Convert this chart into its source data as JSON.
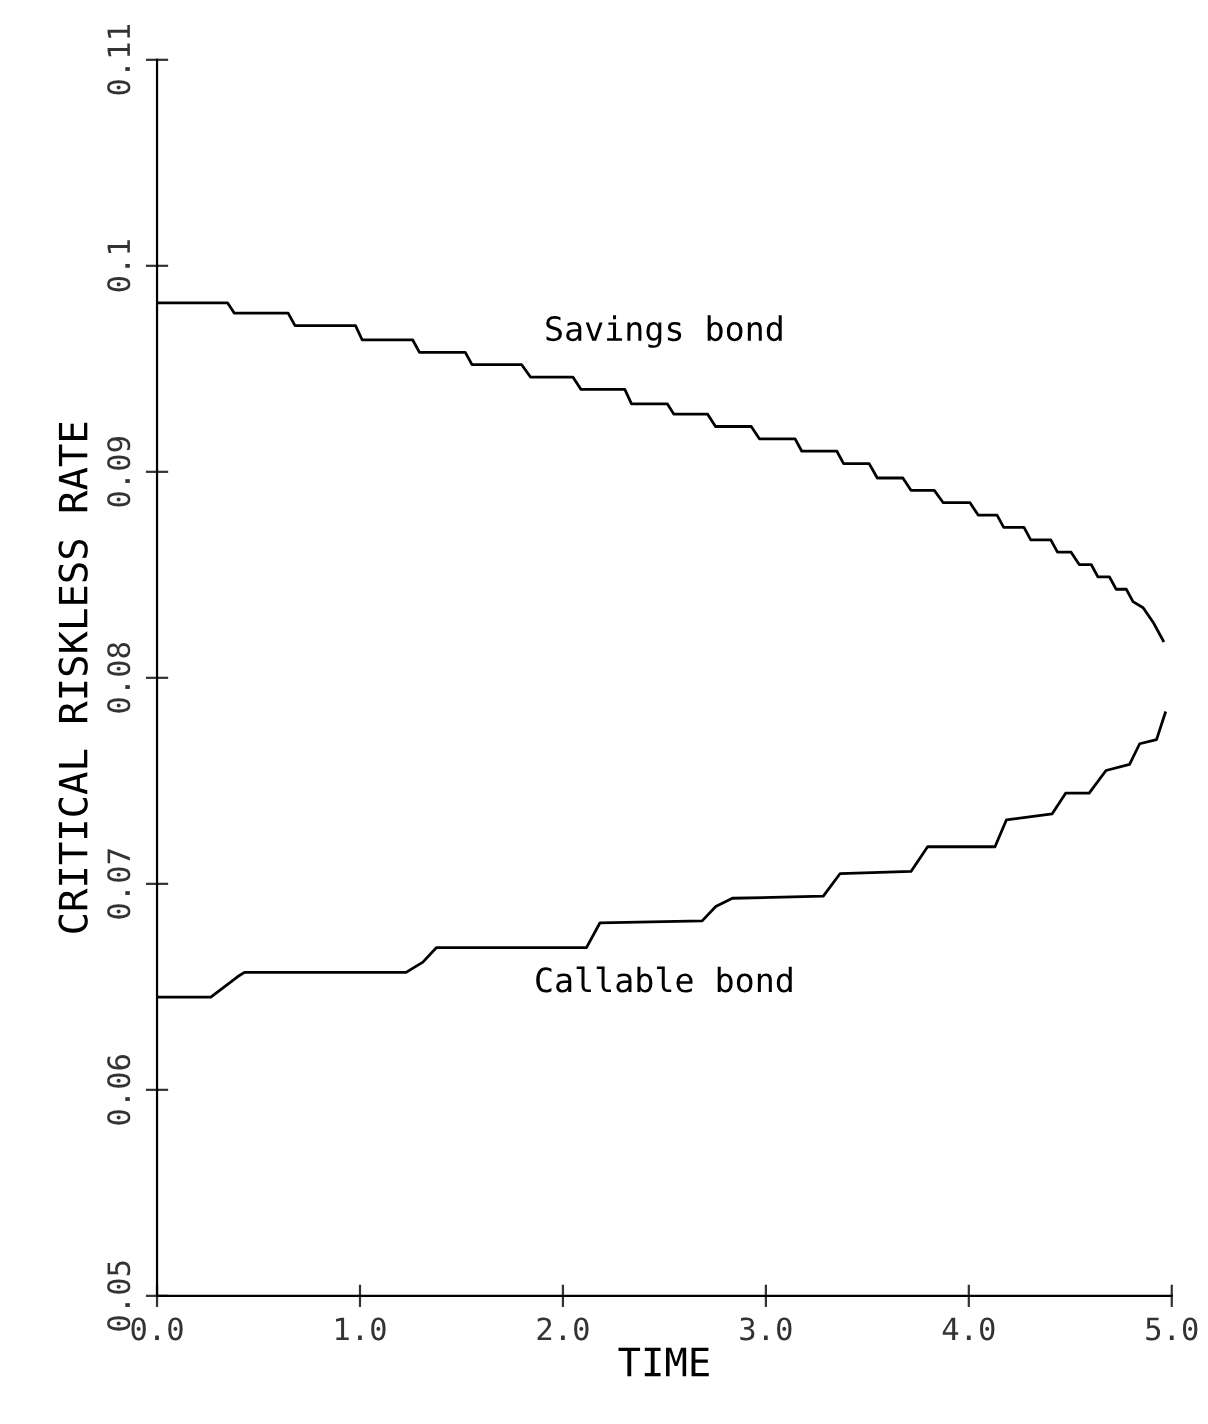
{
  "chart_data": {
    "type": "line",
    "xlabel": "TIME",
    "ylabel": "CRITICAL RISKLESS RATE",
    "xlim": [
      0,
      5
    ],
    "ylim": [
      0.05,
      0.11
    ],
    "xticks": [
      {
        "value": 0,
        "label": "0.0"
      },
      {
        "value": 1,
        "label": "1.0"
      },
      {
        "value": 2,
        "label": "2.0"
      },
      {
        "value": 3,
        "label": "3.0"
      },
      {
        "value": 4,
        "label": "4.0"
      },
      {
        "value": 5,
        "label": "5.0"
      }
    ],
    "yticks": [
      0.05,
      0.06,
      0.07,
      0.08,
      0.09,
      0.1,
      0.11
    ],
    "grid": false,
    "marker": "none",
    "line_style": "solid",
    "series": [
      {
        "name": "Savings bond",
        "color": "#000000",
        "x": [
          0,
          0.348,
          0.381,
          0.646,
          0.68,
          0.978,
          1.011,
          1.26,
          1.293,
          1.519,
          1.552,
          1.797,
          1.84,
          2.049,
          2.089,
          2.305,
          2.338,
          2.514,
          2.547,
          2.713,
          2.752,
          2.928,
          2.968,
          3.144,
          3.177,
          3.35,
          3.383,
          3.509,
          3.549,
          3.675,
          3.715,
          3.83,
          3.874,
          4.006,
          4.046,
          4.139,
          4.172,
          4.272,
          4.305,
          4.404,
          4.437,
          4.504,
          4.544,
          4.603,
          4.636,
          4.693,
          4.726,
          4.776,
          4.809,
          4.859,
          4.908,
          4.958
        ],
        "values": [
          0.0982,
          0.0982,
          0.0977,
          0.0977,
          0.0971,
          0.0971,
          0.0964,
          0.0964,
          0.0958,
          0.0958,
          0.0952,
          0.0952,
          0.0946,
          0.0946,
          0.094,
          0.094,
          0.0933,
          0.0933,
          0.0928,
          0.0928,
          0.0922,
          0.0922,
          0.0916,
          0.0916,
          0.091,
          0.091,
          0.0904,
          0.0904,
          0.0897,
          0.0897,
          0.0891,
          0.0891,
          0.0885,
          0.0885,
          0.0879,
          0.0879,
          0.0873,
          0.0873,
          0.0867,
          0.0867,
          0.0861,
          0.0861,
          0.0855,
          0.0855,
          0.0849,
          0.0849,
          0.0843,
          0.0843,
          0.0837,
          0.0834,
          0.0827,
          0.0818
        ]
      },
      {
        "name": "Callable bond",
        "color": "#000000",
        "x": [
          0,
          0.265,
          0.398,
          0.431,
          1.227,
          1.31,
          1.376,
          2.116,
          2.182,
          2.686,
          2.753,
          2.835,
          3.283,
          3.366,
          3.715,
          3.797,
          4.129,
          4.185,
          4.411,
          4.477,
          4.593,
          4.676,
          4.792,
          4.842,
          4.925,
          4.968
        ],
        "values": [
          0.0645,
          0.0645,
          0.0655,
          0.0657,
          0.0657,
          0.0662,
          0.0669,
          0.0669,
          0.0681,
          0.0682,
          0.0689,
          0.0693,
          0.0694,
          0.0705,
          0.0706,
          0.0718,
          0.0718,
          0.0731,
          0.0734,
          0.0744,
          0.0744,
          0.0755,
          0.0758,
          0.0768,
          0.077,
          0.0783
        ]
      }
    ]
  }
}
